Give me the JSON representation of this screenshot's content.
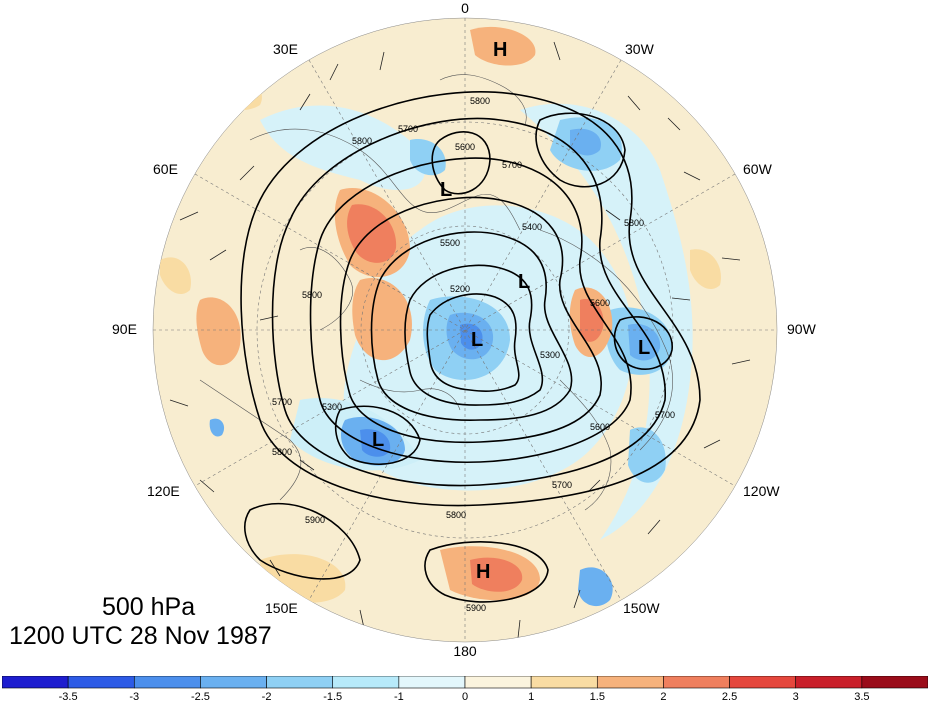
{
  "map": {
    "longitude_labels": [
      {
        "text": "0",
        "key": "lon_0"
      },
      {
        "text": "30W",
        "key": "lon_30w"
      },
      {
        "text": "60W",
        "key": "lon_60w"
      },
      {
        "text": "90W",
        "key": "lon_90w"
      },
      {
        "text": "120W",
        "key": "lon_120w"
      },
      {
        "text": "150W",
        "key": "lon_150w"
      },
      {
        "text": "180",
        "key": "lon_180"
      },
      {
        "text": "150E",
        "key": "lon_150e"
      },
      {
        "text": "120E",
        "key": "lon_120e"
      },
      {
        "text": "90E",
        "key": "lon_90e"
      },
      {
        "text": "60E",
        "key": "lon_60e"
      },
      {
        "text": "30E",
        "key": "lon_30e"
      }
    ],
    "pressure_centers": [
      {
        "label": "H",
        "type": "high"
      },
      {
        "label": "H",
        "type": "high"
      },
      {
        "label": "L",
        "type": "low"
      },
      {
        "label": "L",
        "type": "low"
      },
      {
        "label": "L",
        "type": "low"
      },
      {
        "label": "L",
        "type": "low"
      },
      {
        "label": "L",
        "type": "low"
      }
    ],
    "contour_labels": [
      "5800",
      "5700",
      "5800",
      "5600",
      "5700",
      "5400",
      "5500",
      "5200",
      "5300",
      "5600",
      "5800",
      "5800",
      "5700",
      "5800",
      "5300",
      "5700",
      "5600",
      "5900",
      "5800",
      "5900",
      "5700"
    ],
    "colors": {
      "ocean_blue": "#b3eef7",
      "warm_fill": "#fbe9c5",
      "contour": "#000000",
      "coast": "#555555"
    }
  },
  "titles": {
    "level": "500 hPa",
    "time": "1200 UTC 28 Nov 1987"
  },
  "colorbar": {
    "labels": [
      "-3.5",
      "-3",
      "-2.5",
      "-2",
      "-1.5",
      "-1",
      "0",
      "1",
      "1.5",
      "2",
      "2.5",
      "3",
      "3.5"
    ],
    "colors": [
      "#1e1ecf",
      "#2d5be6",
      "#4c8fec",
      "#6ab0f0",
      "#8fd0f4",
      "#b7eafa",
      "#e3f7fc",
      "#fbf4de",
      "#f9dca3",
      "#f6b27c",
      "#ef7f5e",
      "#e5473d",
      "#c91f2a",
      "#9a0c1a"
    ]
  }
}
